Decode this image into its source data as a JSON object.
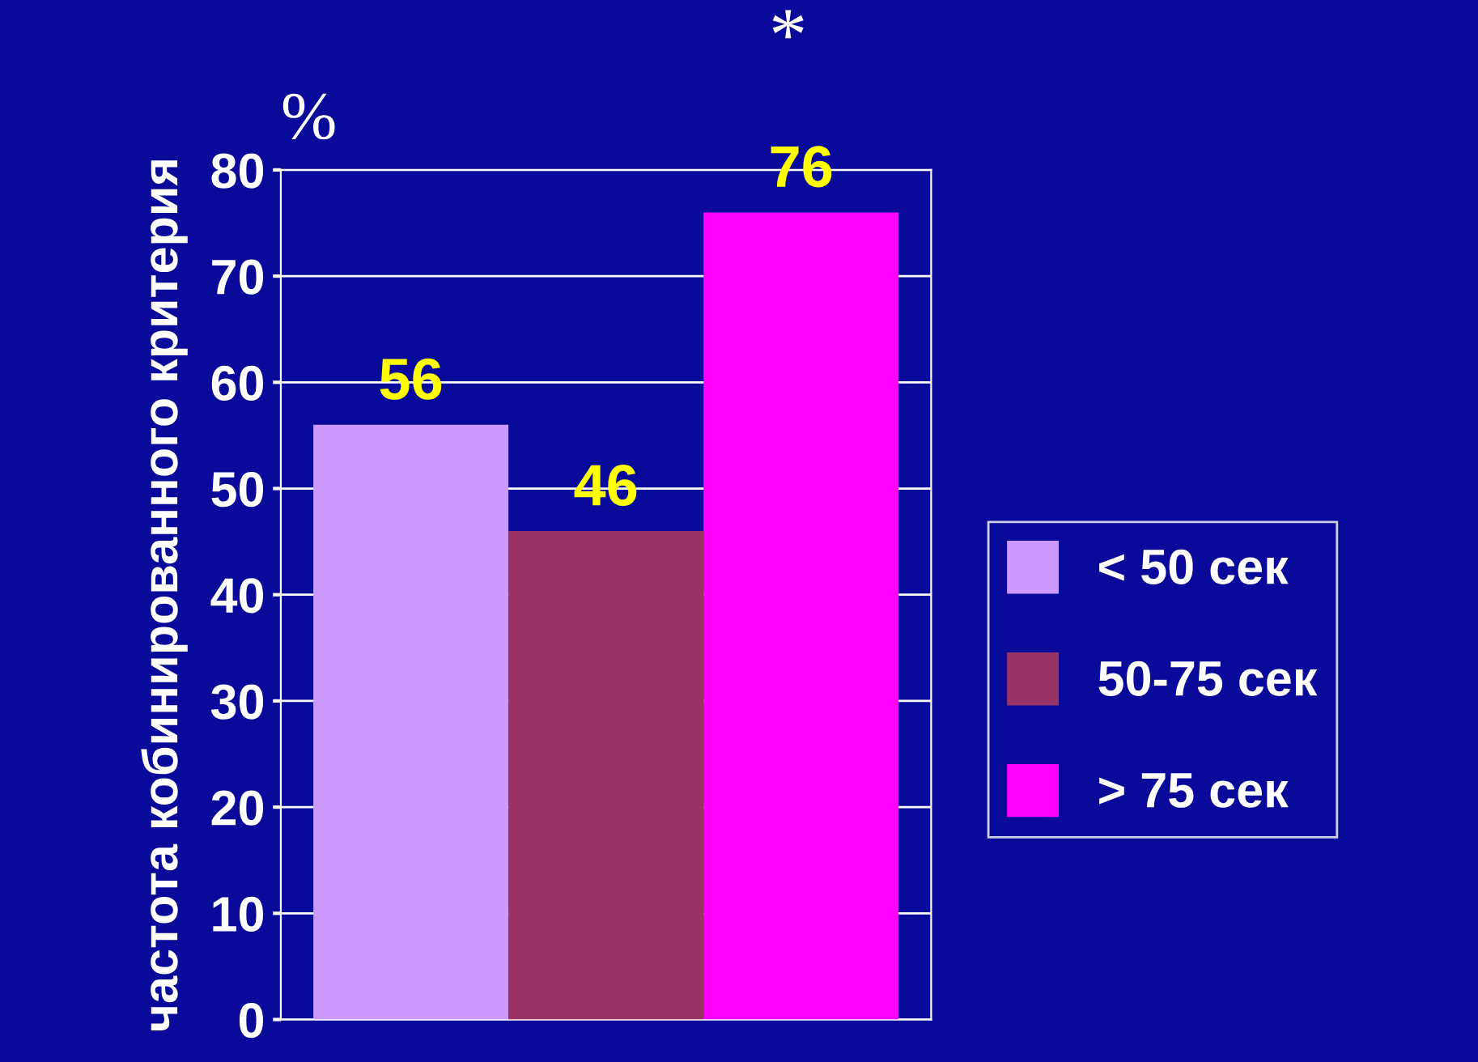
{
  "chart_data": {
    "type": "bar",
    "ylabel": "частота кобинированного критерия",
    "categories": [
      null
    ],
    "series": [
      {
        "name": "< 50 сек",
        "color": "#cc99ff",
        "values": [
          56
        ]
      },
      {
        "name": "50-75 сек",
        "color": "#993366",
        "values": [
          46
        ]
      },
      {
        "name": "> 75 сек",
        "color": "#ff00ff",
        "values": [
          76
        ]
      }
    ],
    "ylim": [
      0,
      80
    ],
    "yticks": [
      0,
      10,
      20,
      30,
      40,
      50,
      60,
      70,
      80
    ],
    "grid": "y",
    "legend": "right",
    "data_labels": true,
    "annotations": [
      "%",
      "*"
    ]
  }
}
